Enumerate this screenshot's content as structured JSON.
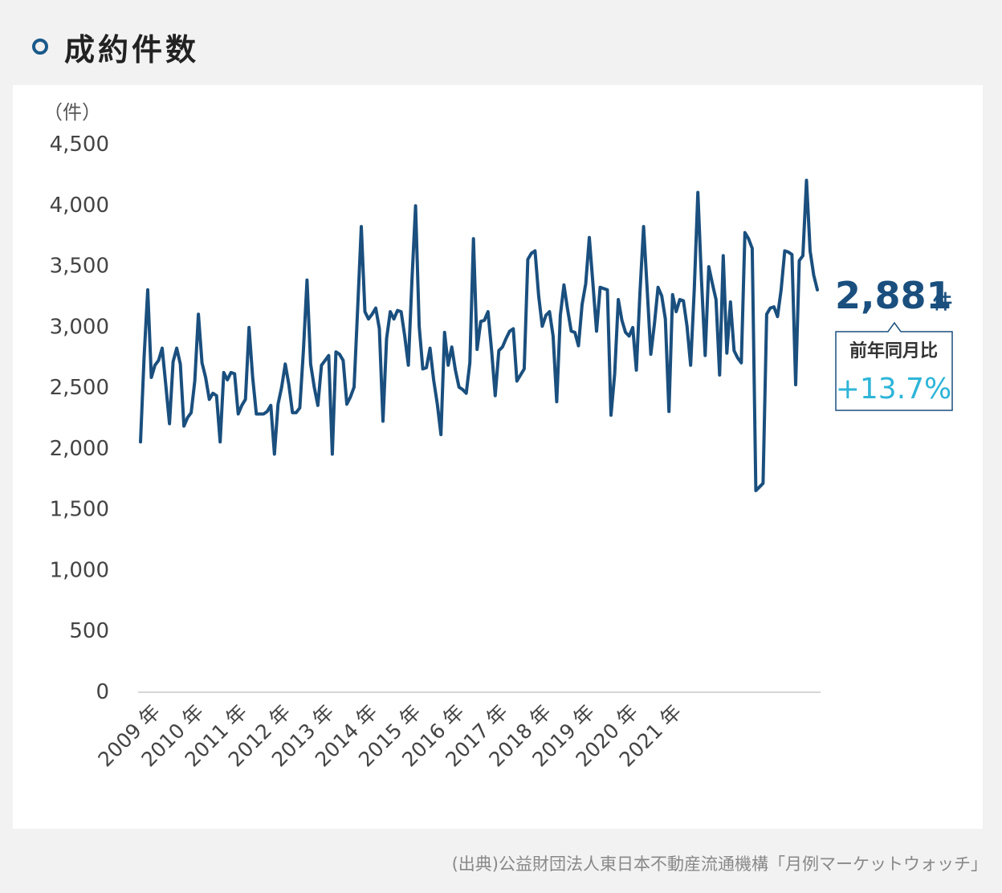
{
  "header": {
    "title": "成約件数"
  },
  "chart_data": {
    "type": "line",
    "ylabel": "（件）",
    "ylim": [
      0,
      4500
    ],
    "yticks": [
      "4,500",
      "4,000",
      "3,500",
      "3,000",
      "2,500",
      "2,000",
      "1,500",
      "1,000",
      "500",
      "0"
    ],
    "ytick_values": [
      4500,
      4000,
      3500,
      3000,
      2500,
      2000,
      1500,
      1000,
      500,
      0
    ],
    "x_tick_labels": [
      "2009 年",
      "2010 年",
      "2011 年",
      "2012 年",
      "2013 年",
      "2014 年",
      "2015 年",
      "2016 年",
      "2017 年",
      "2018 年",
      "2019 年",
      "2020 年",
      "2021 年"
    ],
    "x_start": "2009-01",
    "series": [
      {
        "values": [
          2050,
          2750,
          3300,
          2580,
          2680,
          2720,
          2820,
          2510,
          2200,
          2710,
          2820,
          2690,
          2180,
          2250,
          2290,
          2550,
          3100,
          2700,
          2580,
          2400,
          2450,
          2430,
          2050,
          2620,
          2560,
          2620,
          2610,
          2280,
          2350,
          2400,
          2990,
          2580,
          2280,
          2280,
          2280,
          2300,
          2350,
          1950,
          2360,
          2500,
          2690,
          2520,
          2290,
          2290,
          2330,
          2800,
          3380,
          2690,
          2500,
          2350,
          2680,
          2720,
          2760,
          1950,
          2790,
          2770,
          2720,
          2360,
          2420,
          2500,
          3150,
          3820,
          3120,
          3060,
          3100,
          3150,
          2980,
          2220,
          2900,
          3120,
          3060,
          3130,
          3120,
          2920,
          2680,
          3380,
          3990,
          3000,
          2650,
          2660,
          2820,
          2560,
          2360,
          2110,
          2950,
          2680,
          2830,
          2640,
          2500,
          2480,
          2450,
          2700,
          3720,
          2810,
          3040,
          3050,
          3120,
          2800,
          2430,
          2800,
          2830,
          2900,
          2960,
          2980,
          2550,
          2600,
          2650,
          3550,
          3600,
          3620,
          3250,
          3000,
          3090,
          3120,
          2920,
          2380,
          3090,
          3340,
          3140,
          2960,
          2950,
          2840,
          3180,
          3350,
          3730,
          3350,
          2960,
          3320,
          3310,
          3300,
          2270,
          2610,
          3220,
          3050,
          2950,
          2920,
          2990,
          2640,
          3280,
          3820,
          3300,
          2770,
          3020,
          3320,
          3250,
          3060,
          2300,
          3260,
          3120,
          3220,
          3210,
          3000,
          2680,
          3300,
          4100,
          3380,
          2760,
          3490,
          3350,
          3220,
          2600,
          3580,
          2780,
          3200,
          2800,
          2740,
          2700,
          3770,
          3720,
          3640,
          1650,
          1680,
          1710,
          3100,
          3150,
          3160,
          3080,
          3300,
          3620,
          3610,
          3590,
          2520,
          3540,
          3580,
          4200,
          3620,
          3420,
          3300
        ]
      }
    ],
    "callout": {
      "value": "2,881",
      "unit": "件",
      "label": "前年同月比",
      "change": "+13.7%"
    },
    "colors": {
      "line": "#1a4f7e",
      "change": "#2eb5d8",
      "axis": "#d0d0d0",
      "callout_border": "#1a4f7e"
    }
  },
  "footer": {
    "source": "(出典)公益財団法人東日本不動産流通機構「月例マーケットウォッチ」"
  }
}
